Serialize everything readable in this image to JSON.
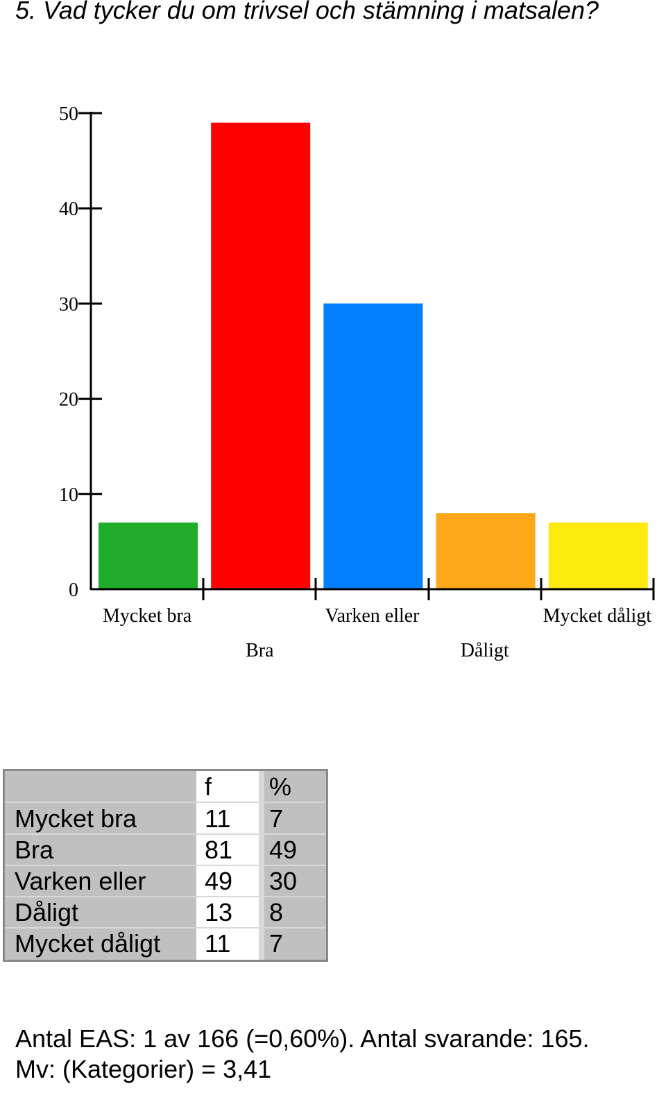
{
  "title": "5. Vad tycker du om trivsel och stämning i matsalen?",
  "chart_data": {
    "type": "bar",
    "categories": [
      "Mycket bra",
      "Bra",
      "Varken eller",
      "Dåligt",
      "Mycket dåligt"
    ],
    "values": [
      7,
      49,
      30,
      8,
      7
    ],
    "colors": [
      "#1fac2a",
      "#fe0000",
      "#0080ff",
      "#fda81b",
      "#fdea0e"
    ],
    "ylim": [
      0,
      50
    ],
    "yticks": [
      0,
      10,
      20,
      30,
      40,
      50
    ],
    "grid": false
  },
  "table": {
    "headers": [
      "",
      "f",
      "%"
    ],
    "rows": [
      {
        "label": "Mycket bra",
        "f": "11",
        "pct": "7"
      },
      {
        "label": "Bra",
        "f": "81",
        "pct": "49"
      },
      {
        "label": "Varken eller",
        "f": "49",
        "pct": "30"
      },
      {
        "label": "Dåligt",
        "f": "13",
        "pct": "8"
      },
      {
        "label": "Mycket dåligt",
        "f": "11",
        "pct": "7"
      }
    ]
  },
  "footer": {
    "line1": "Antal EAS: 1 av 166 (=0,60%). Antal svarande:  165.",
    "line2": "Mv: (Kategorier) = 3,41"
  }
}
